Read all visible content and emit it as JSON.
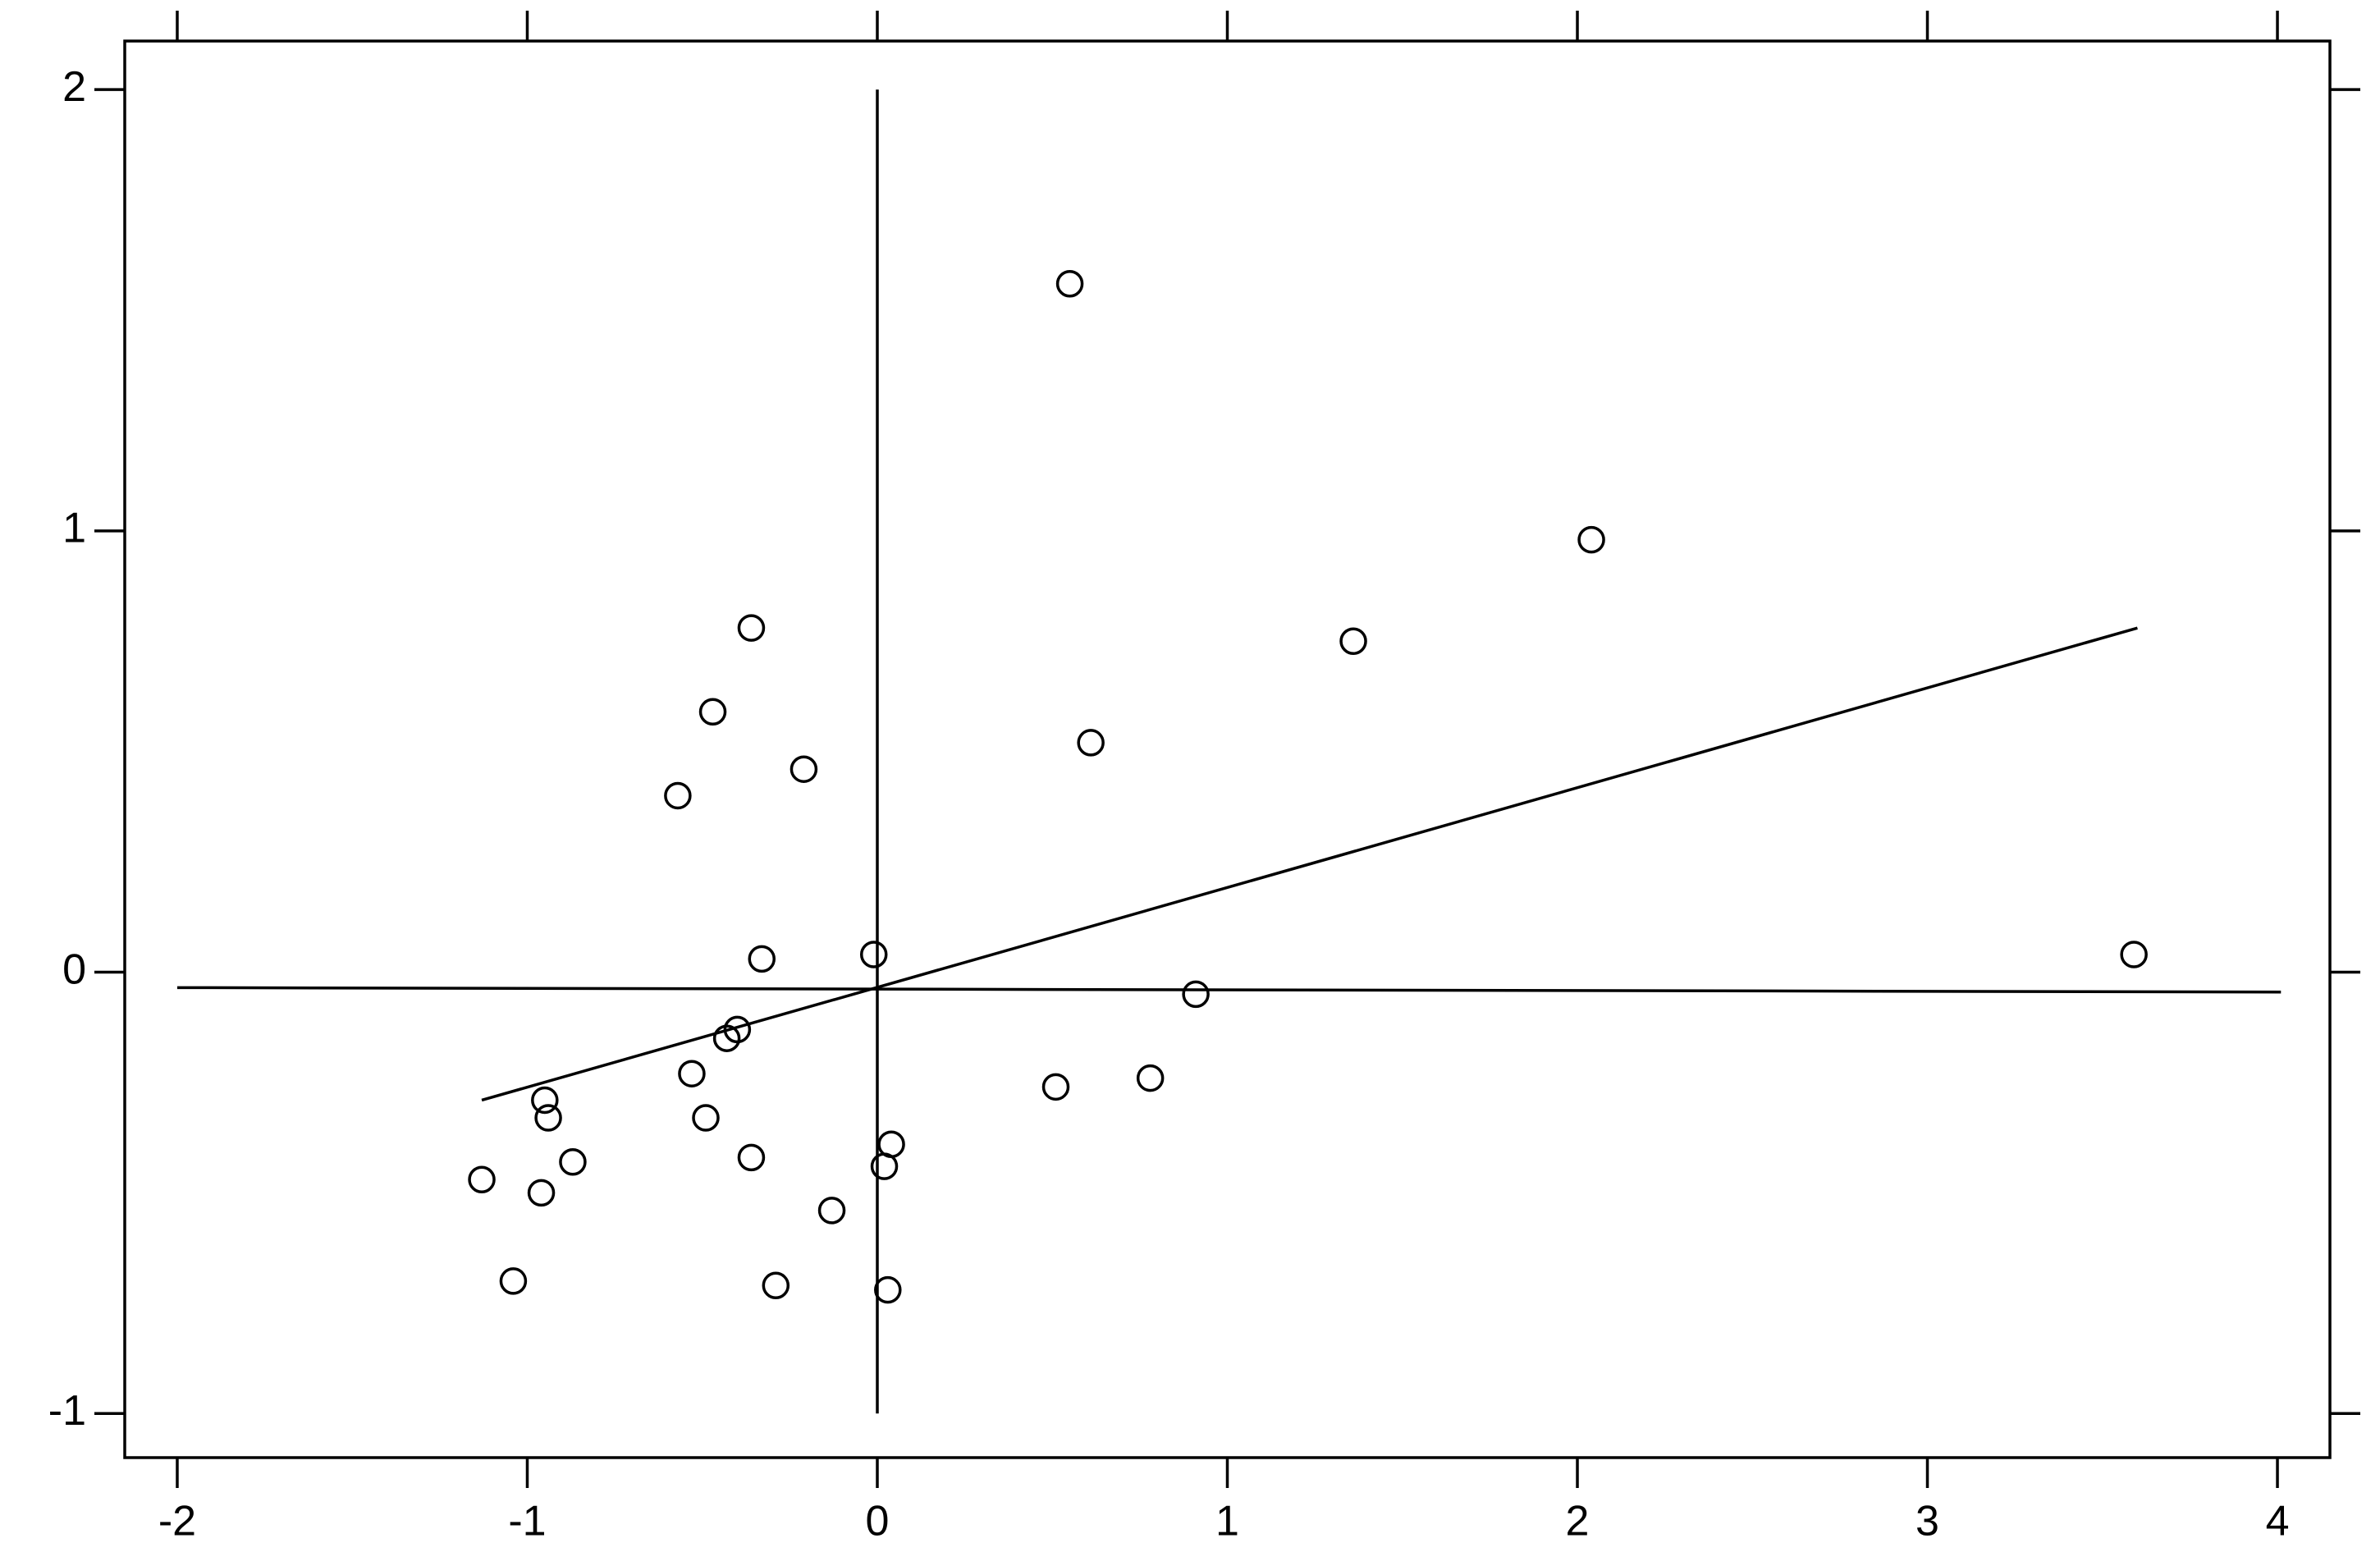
{
  "chart_data": {
    "type": "scatter",
    "x": [
      0.55,
      2.04,
      1.36,
      -0.36,
      -0.47,
      0.61,
      -0.21,
      -0.57,
      -0.33,
      -0.01,
      3.59,
      0.91,
      -0.4,
      -0.43,
      -0.53,
      0.51,
      0.78,
      -0.95,
      -0.94,
      -0.49,
      0.04,
      0.02,
      -0.36,
      -0.87,
      -1.13,
      -0.96,
      -0.13,
      -1.04,
      -0.29,
      0.03
    ],
    "values": [
      1.56,
      0.98,
      0.75,
      0.78,
      0.59,
      0.52,
      0.46,
      0.4,
      0.03,
      0.04,
      0.04,
      -0.05,
      -0.13,
      -0.15,
      -0.23,
      -0.26,
      -0.24,
      -0.29,
      -0.33,
      -0.33,
      -0.39,
      -0.44,
      -0.42,
      -0.43,
      -0.47,
      -0.5,
      -0.54,
      -0.7,
      -0.71,
      -0.72
    ],
    "color": "#000000",
    "lines": [
      {
        "x": [
          -1.13,
          3.6
        ],
        "y": [
          -0.29,
          0.78
        ]
      },
      {
        "x": [
          -2,
          4.01
        ],
        "y": [
          -0.035,
          -0.045
        ]
      },
      {
        "x": [
          0,
          0
        ],
        "y": [
          2,
          -1
        ]
      }
    ],
    "xlim": [
      -2.15,
      4.15
    ],
    "ylim": [
      -1.1,
      2.11
    ],
    "xticks": [
      -2,
      -1,
      0,
      1,
      2,
      3,
      4
    ],
    "yticks": [
      -1,
      0,
      1,
      2
    ]
  }
}
